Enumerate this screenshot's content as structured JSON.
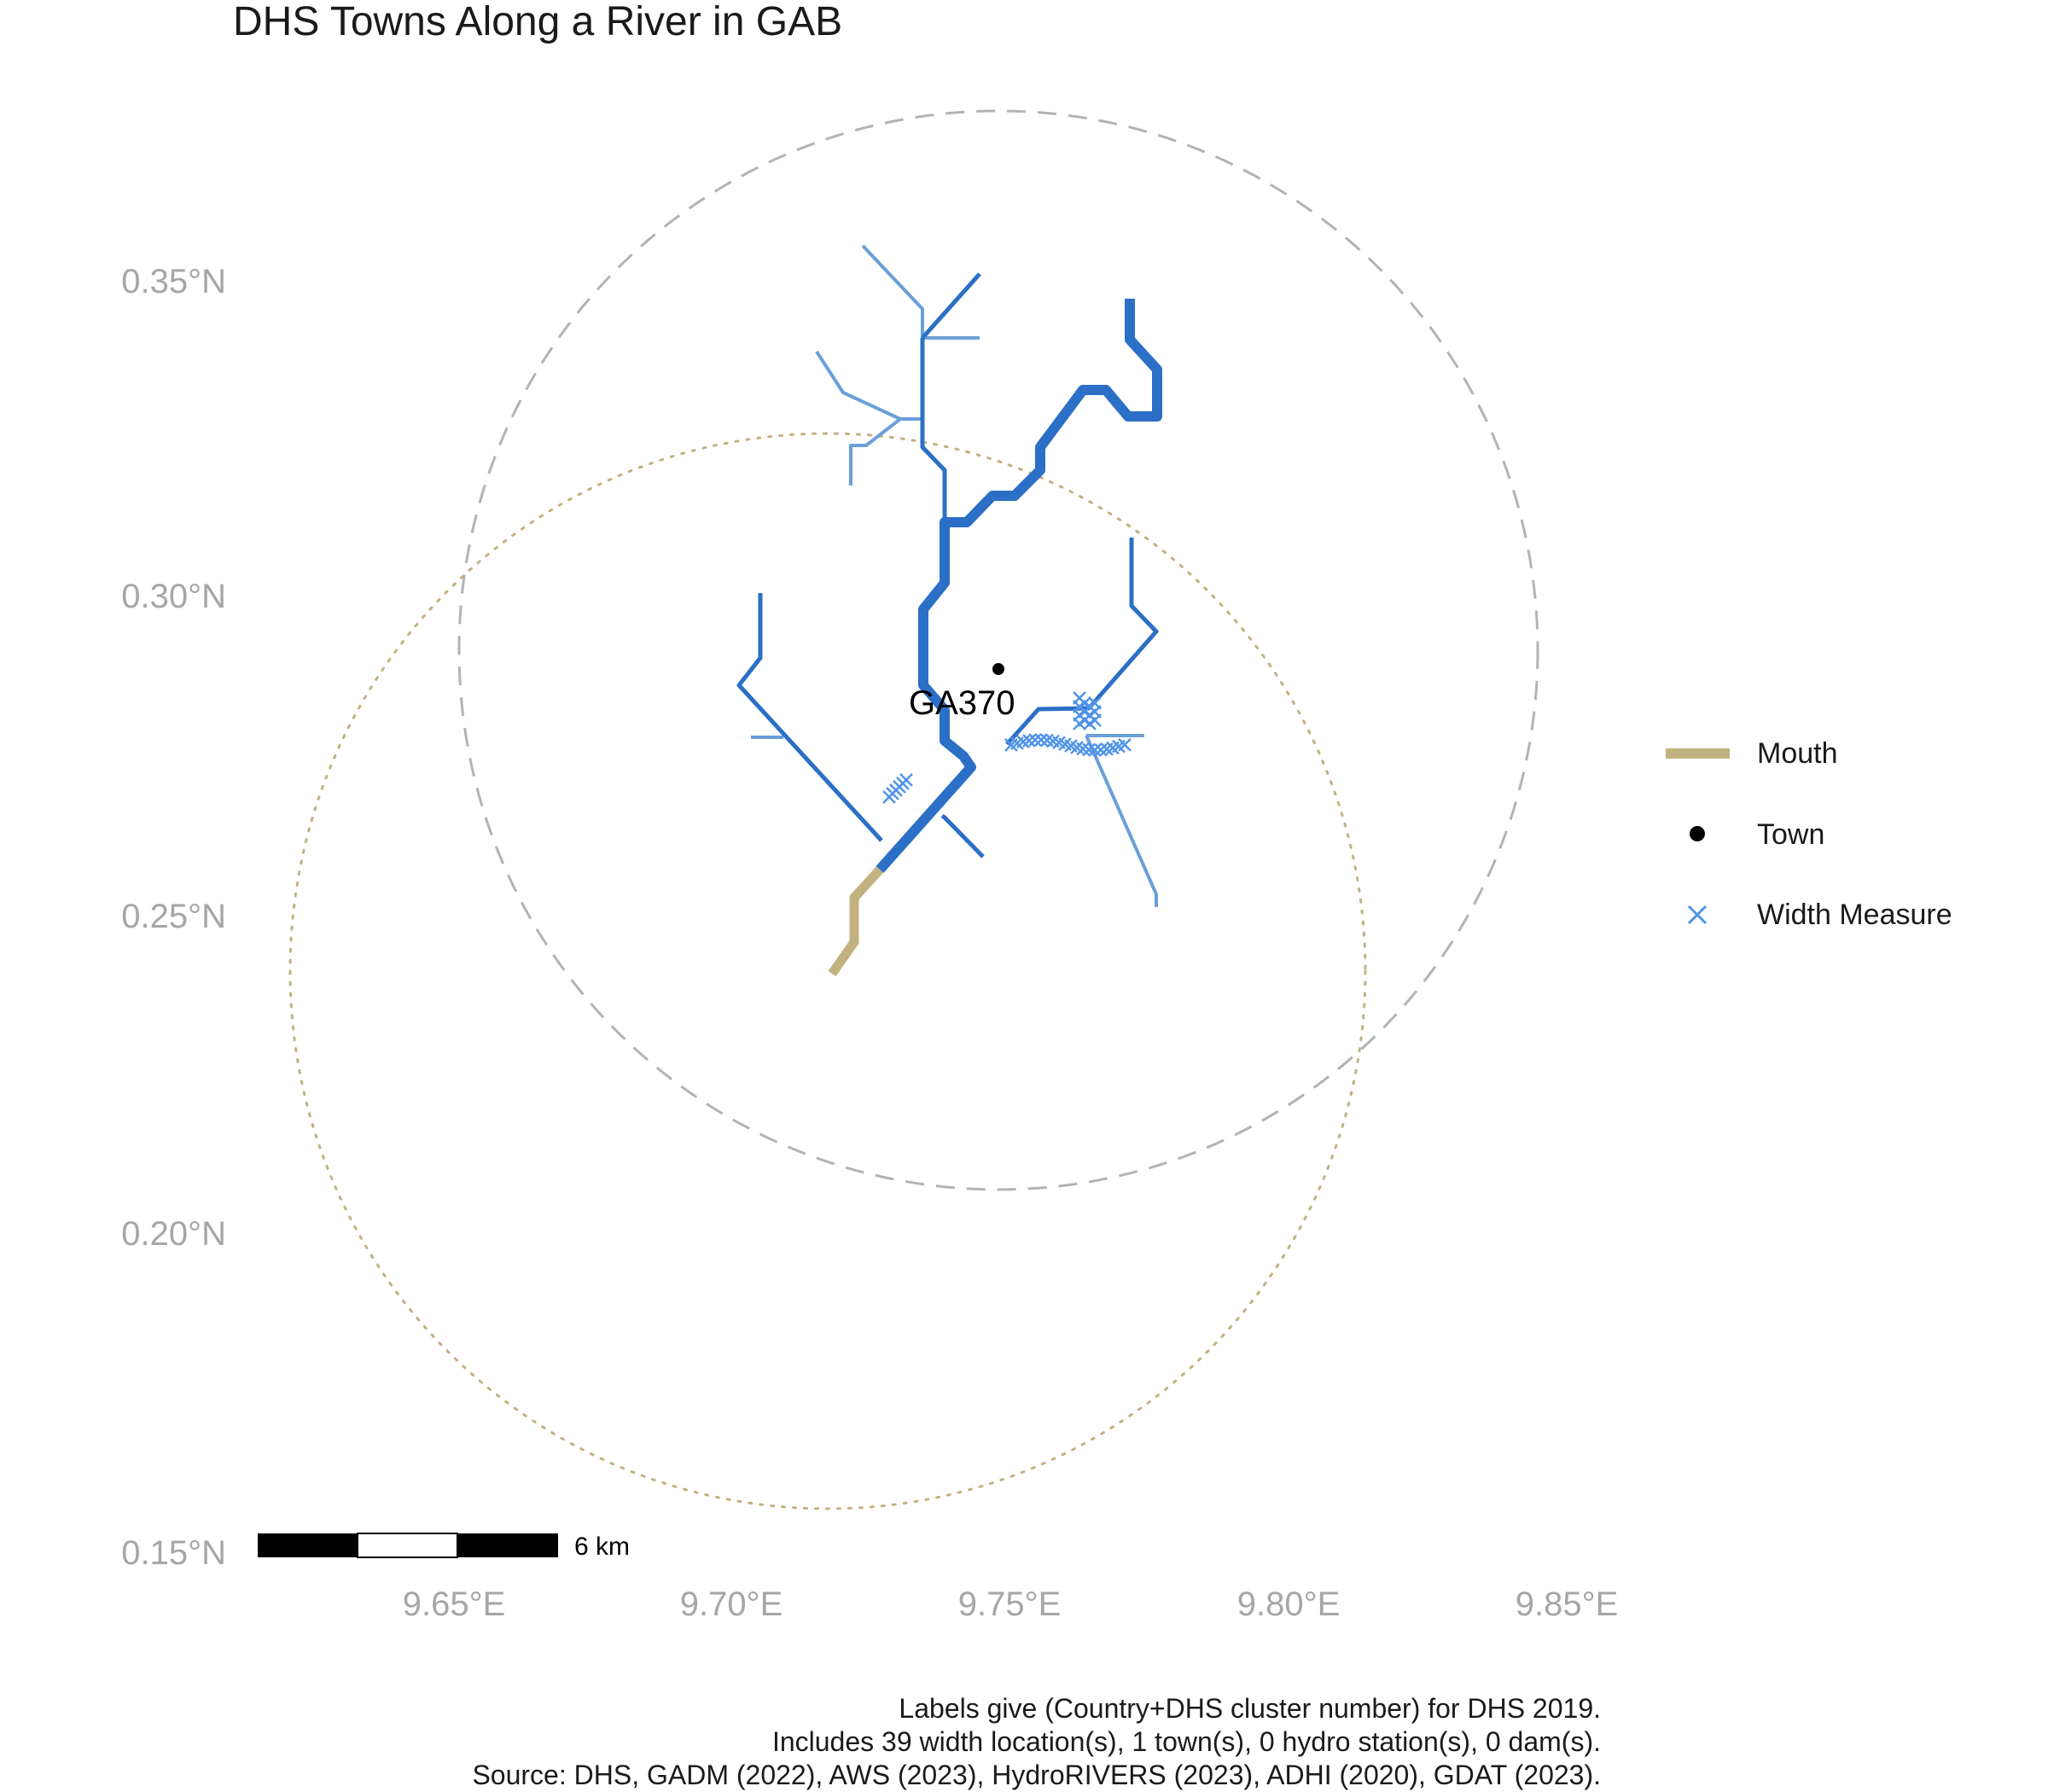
{
  "map": {
    "title": "DHS Towns Along a River in GAB",
    "x_ticks": [
      "9.65°E",
      "9.70°E",
      "9.75°E",
      "9.80°E",
      "9.85°E"
    ],
    "y_ticks": [
      "0.35°N",
      "0.30°N",
      "0.25°N",
      "0.20°N",
      "0.15°N"
    ],
    "town_label": "GA370",
    "scale_bar_label": "6 km",
    "legend": [
      {
        "label": "Mouth",
        "symbol": "line",
        "color": "#C2B280"
      },
      {
        "label": "Town",
        "symbol": "dot",
        "color": "#000000"
      },
      {
        "label": "Width Measure",
        "symbol": "x",
        "color": "#4F94E8"
      }
    ],
    "caption": [
      "Labels give (Country+DHS cluster number) for DHS 2019.",
      "Includes 39 width location(s), 1 town(s), 0 hydro station(s), 0 dam(s).",
      "Source: DHS, GADM (2022), AWS (2023), HydroRIVERS (2023), ADHI (2020), GDAT (2023)."
    ],
    "colors": {
      "river_main": "#2B6FC6",
      "river_trib": "#6A9FD8",
      "mouth": "#C2B280",
      "circle_dashed": "#b3b3b3",
      "circle_dotted": "#C2B280",
      "width_marker": "#4F94E8"
    }
  }
}
